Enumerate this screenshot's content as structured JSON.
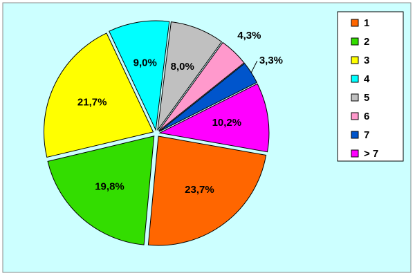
{
  "chart_data": {
    "type": "pie",
    "categories": [
      "1",
      "2",
      "3",
      "4",
      "5",
      "6",
      "7",
      "> 7"
    ],
    "values": [
      23.7,
      19.8,
      21.7,
      9.0,
      8.0,
      4.3,
      3.3,
      10.2
    ],
    "value_labels": [
      "23,7%",
      "19,8%",
      "21,7%",
      "9,0%",
      "8,0%",
      "4,3%",
      "3,3%",
      "10,2%"
    ],
    "colors": [
      "#ff6600",
      "#33dd00",
      "#ffff00",
      "#00ffff",
      "#c0c0c0",
      "#ff99cc",
      "#0055cc",
      "#ff00ff"
    ],
    "legend": "right"
  }
}
